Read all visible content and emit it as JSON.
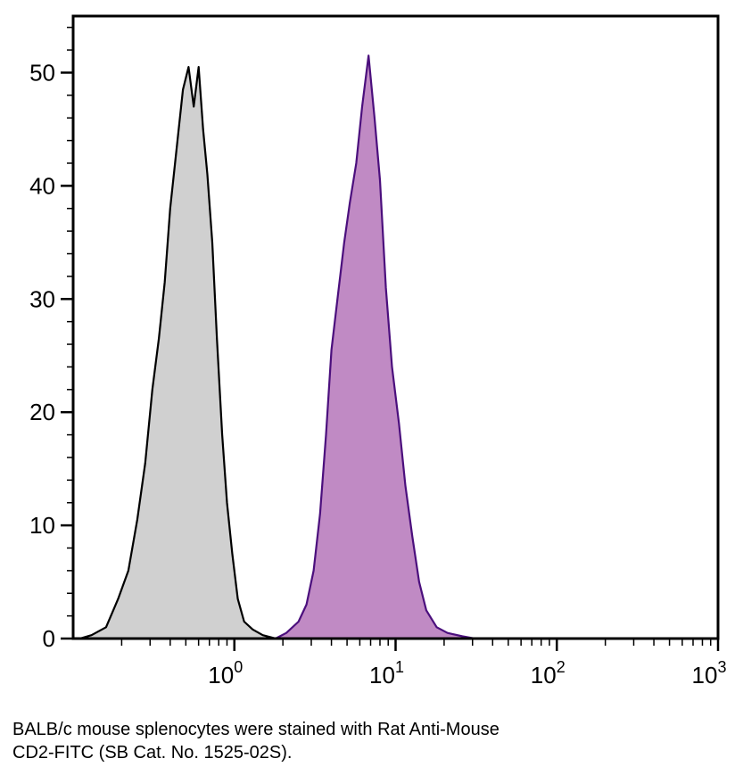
{
  "chart_data": {
    "type": "area",
    "title": "",
    "xlabel": "",
    "ylabel": "",
    "xscale": "log",
    "xlim": [
      0.1,
      1000
    ],
    "ylim": [
      0,
      55
    ],
    "y_ticks": [
      "0",
      "10",
      "20",
      "30",
      "40",
      "50"
    ],
    "x_ticks": [
      {
        "base": "10",
        "exp": "0"
      },
      {
        "base": "10",
        "exp": "1"
      },
      {
        "base": "10",
        "exp": "2"
      },
      {
        "base": "10",
        "exp": "3"
      }
    ],
    "series": [
      {
        "fill": "#d0d0d0",
        "stroke": "#000000",
        "x": [
          0.11,
          0.13,
          0.16,
          0.19,
          0.22,
          0.25,
          0.28,
          0.31,
          0.34,
          0.37,
          0.4,
          0.44,
          0.48,
          0.52,
          0.56,
          0.6,
          0.64,
          0.68,
          0.73,
          0.78,
          0.84,
          0.9,
          0.97,
          1.05,
          1.15,
          1.3,
          1.5,
          1.8
        ],
        "values": [
          0,
          0.3,
          1.0,
          3.5,
          6.0,
          10.5,
          15.5,
          22.0,
          26.5,
          31.5,
          38.0,
          43.5,
          48.5,
          50.5,
          47.0,
          50.5,
          45.0,
          41.0,
          35.0,
          26.5,
          18.0,
          12.0,
          7.5,
          3.5,
          1.5,
          0.8,
          0.3,
          0
        ]
      },
      {
        "fill": "#c08ac4",
        "stroke": "#4b0f7d",
        "x": [
          1.8,
          2.1,
          2.5,
          2.8,
          3.1,
          3.4,
          3.7,
          4.0,
          4.4,
          4.8,
          5.2,
          5.7,
          6.2,
          6.8,
          7.4,
          8.0,
          8.7,
          9.5,
          10.5,
          11.5,
          12.7,
          14.0,
          15.5,
          18.0,
          21.0,
          26.0,
          31.0
        ],
        "values": [
          0,
          0.5,
          1.5,
          3.0,
          6.0,
          11.0,
          18.0,
          25.5,
          30.5,
          35.0,
          38.5,
          42.0,
          47.0,
          51.5,
          46.0,
          40.5,
          31.0,
          24.0,
          19.0,
          13.5,
          9.0,
          5.0,
          2.5,
          1.0,
          0.5,
          0.2,
          0
        ]
      }
    ]
  },
  "caption": {
    "line1": "BALB/c mouse splenocytes were stained with Rat Anti-Mouse",
    "line2": "CD2-FITC (SB Cat. No. 1525-02S)."
  }
}
